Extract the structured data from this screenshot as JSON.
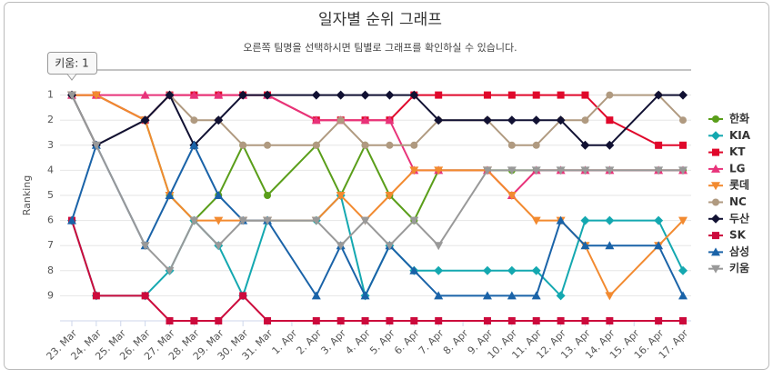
{
  "chart_data": {
    "type": "line",
    "title": "일자별 순위 그래프",
    "subtitle": "오른쪽 팀명을 선택하시면 팀별로 그래프를 확인하실 수 있습니다.",
    "y_label": "Ranking",
    "tooltip": "키움: 1",
    "categories": [
      "23. Mar",
      "24. Mar",
      "25. Mar",
      "26. Mar",
      "27. Mar",
      "28. Mar",
      "29. Mar",
      "30. Mar",
      "31. Mar",
      "1. Apr",
      "2. Apr",
      "3. Apr",
      "4. Apr",
      "5. Apr",
      "6. Apr",
      "7. Apr",
      "8. Apr",
      "9. Apr",
      "10. Apr",
      "11. Apr",
      "12. Apr",
      "13. Apr",
      "14. Apr",
      "15. Apr",
      "16. Apr",
      "17. Apr"
    ],
    "ylim": [
      0,
      10
    ],
    "y_reversed": true,
    "yticks": [
      1,
      2,
      3,
      4,
      5,
      6,
      7,
      8,
      9
    ],
    "grid": true,
    "connect_nulls": true,
    "legend": "right",
    "series": [
      {
        "name": "한화",
        "color": "#5a9e1a",
        "marker": "circle",
        "values": [
          1,
          1,
          null,
          2,
          5,
          6,
          5,
          3,
          5,
          null,
          3,
          5,
          3,
          5,
          6,
          4,
          null,
          4,
          4,
          4,
          4,
          4,
          4,
          null,
          4,
          4
        ]
      },
      {
        "name": "KIA",
        "color": "#14a8b0",
        "marker": "diamond",
        "values": [
          6,
          9,
          null,
          9,
          8,
          6,
          7,
          9,
          6,
          null,
          6,
          5,
          9,
          7,
          8,
          8,
          null,
          8,
          8,
          8,
          9,
          6,
          6,
          null,
          6,
          8
        ]
      },
      {
        "name": "KT",
        "color": "#e0082b",
        "marker": "square",
        "values": [
          1,
          1,
          null,
          2,
          1,
          1,
          1,
          1,
          1,
          null,
          2,
          2,
          2,
          2,
          1,
          1,
          null,
          1,
          1,
          1,
          1,
          1,
          2,
          null,
          3,
          3
        ]
      },
      {
        "name": "LG",
        "color": "#e8337a",
        "marker": "triangle",
        "values": [
          1,
          1,
          null,
          1,
          1,
          1,
          1,
          1,
          1,
          null,
          2,
          2,
          2,
          2,
          4,
          4,
          null,
          4,
          5,
          4,
          4,
          4,
          4,
          null,
          4,
          4
        ]
      },
      {
        "name": "롯데",
        "color": "#f28a30",
        "marker": "triangle-down",
        "values": [
          1,
          1,
          null,
          2,
          5,
          6,
          6,
          6,
          6,
          null,
          6,
          5,
          6,
          5,
          4,
          4,
          null,
          4,
          5,
          6,
          6,
          7,
          9,
          null,
          7,
          6
        ]
      },
      {
        "name": "NC",
        "color": "#b09a80",
        "marker": "circle",
        "values": [
          1,
          3,
          null,
          2,
          1,
          2,
          2,
          3,
          3,
          null,
          3,
          2,
          3,
          3,
          3,
          2,
          null,
          2,
          3,
          3,
          2,
          2,
          1,
          null,
          1,
          2
        ]
      },
      {
        "name": "두산",
        "color": "#111133",
        "marker": "diamond",
        "values": [
          1,
          3,
          null,
          2,
          1,
          3,
          2,
          1,
          1,
          null,
          1,
          1,
          1,
          1,
          1,
          2,
          null,
          2,
          2,
          2,
          2,
          3,
          3,
          null,
          1,
          1
        ]
      },
      {
        "name": "SK",
        "color": "#cc0a3c",
        "marker": "square",
        "values": [
          6,
          9,
          null,
          9,
          10,
          10,
          10,
          9,
          10,
          null,
          10,
          10,
          10,
          10,
          10,
          10,
          null,
          10,
          10,
          10,
          10,
          10,
          10,
          null,
          10,
          10
        ]
      },
      {
        "name": "삼성",
        "color": "#1a63a8",
        "marker": "triangle",
        "values": [
          6,
          3,
          null,
          7,
          5,
          3,
          5,
          6,
          6,
          null,
          9,
          7,
          9,
          7,
          8,
          9,
          null,
          9,
          9,
          9,
          6,
          7,
          7,
          null,
          7,
          9
        ]
      },
      {
        "name": "키움",
        "color": "#999999",
        "marker": "triangle-down",
        "values": [
          1,
          3,
          null,
          7,
          8,
          6,
          7,
          6,
          6,
          null,
          6,
          7,
          6,
          7,
          6,
          7,
          null,
          4,
          4,
          4,
          4,
          4,
          4,
          null,
          4,
          4
        ]
      }
    ]
  }
}
